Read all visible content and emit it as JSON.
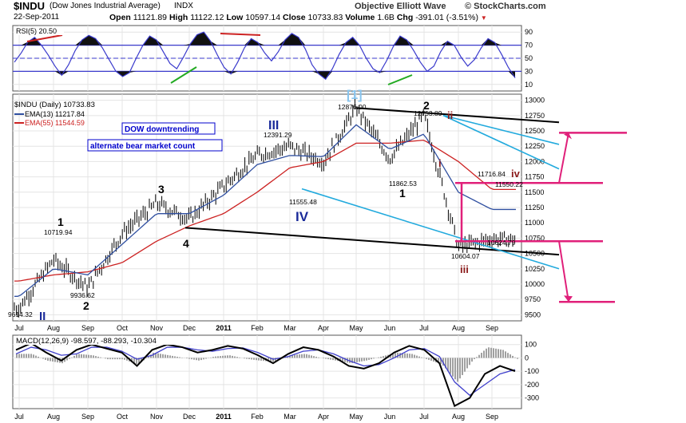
{
  "header": {
    "symbol": "$INDU",
    "name": "(Dow Jones Industrial Average)",
    "exchange": "INDX",
    "date": "22-Sep-2011",
    "open_label": "Open",
    "open": "11121.89",
    "high_label": "High",
    "high": "11122.12",
    "low_label": "Low",
    "low": "10597.14",
    "close_label": "Close",
    "close": "10733.83",
    "volume_label": "Volume",
    "volume": "1.6B",
    "chg_label": "Chg",
    "chg": "-391.01 (-3.51%)",
    "source": "Objective Elliott Wave",
    "copyright": "© StockCharts.com"
  },
  "colors": {
    "price": "#000000",
    "ema13": "#2f4fa0",
    "ema55": "#cc2222",
    "rsi": "#3a3acc",
    "macd": "#000000",
    "signal": "#4040cc",
    "histogram": "#a0a0a0",
    "channel_blue": "#22aadd",
    "trend_black": "#000000",
    "magenta": "#e0207a",
    "wave_red": "#8b1a1a",
    "wave_blue": "#1a2a9a",
    "label_box": "#0000cc",
    "arrow_down": "#cc2222"
  },
  "chart_data": [
    {
      "type": "line",
      "panel": "rsi",
      "title": "RSI(5) 20.50",
      "series": [
        {
          "name": "RSI(5)",
          "values": [
            44,
            58,
            75,
            82,
            70,
            55,
            38,
            24,
            40,
            62,
            78,
            85,
            80,
            66,
            48,
            30,
            22,
            28,
            50,
            70,
            84,
            78,
            60,
            42,
            34,
            52,
            72,
            86,
            90,
            76,
            55,
            36,
            26,
            44,
            66,
            80,
            74,
            58,
            46,
            60,
            78,
            88,
            82,
            64,
            40,
            26,
            18,
            34,
            56,
            74,
            82,
            70,
            50,
            34,
            28,
            46,
            68,
            84,
            78,
            62,
            44,
            30,
            38,
            60,
            76,
            70,
            52,
            38,
            48,
            66,
            80,
            74,
            56,
            36,
            20
          ]
        }
      ],
      "yticks": [
        10,
        30,
        50,
        70,
        90
      ],
      "ylim": [
        0,
        100
      ]
    },
    {
      "type": "line",
      "panel": "price",
      "title": "$INDU (Daily) 10733.83",
      "x_tick_labels": [
        "Jul",
        "Aug",
        "Sep",
        "Oct",
        "Nov",
        "Dec",
        "2011",
        "Feb",
        "Mar",
        "Apr",
        "May",
        "Jun",
        "Jul",
        "Aug",
        "Sep"
      ],
      "yticks": [
        9500,
        9750,
        10000,
        10250,
        10500,
        10750,
        11000,
        11250,
        11500,
        11750,
        12000,
        12250,
        12500,
        12750,
        13000
      ],
      "ylim": [
        9400,
        13100
      ],
      "series": [
        {
          "name": "$INDU (Daily)",
          "x": [
            "Jul",
            "Aug",
            "Sep",
            "Oct",
            "Nov",
            "Dec",
            "2011",
            "Feb",
            "Mar",
            "Apr",
            "May",
            "Jun",
            "Jul",
            "Aug",
            "Sep"
          ],
          "values": [
            9614,
            10400,
            9936,
            10830,
            11320,
            11060,
            11600,
            12100,
            12250,
            12000,
            12876,
            12050,
            12753,
            10604,
            10733
          ]
        },
        {
          "name": "EMA(13) 11217.84",
          "values": [
            9800,
            10250,
            10150,
            10650,
            11150,
            11150,
            11450,
            11950,
            12100,
            12080,
            12600,
            12200,
            12450,
            11500,
            11218
          ]
        },
        {
          "name": "EMA(55) 11544.59",
          "values": [
            10050,
            10150,
            10200,
            10350,
            10700,
            10950,
            11150,
            11500,
            11900,
            12000,
            12300,
            12300,
            12350,
            12000,
            11545
          ]
        }
      ],
      "annotations": [
        {
          "text": "10719.94"
        },
        {
          "text": "9614.32"
        },
        {
          "text": "9936.62"
        },
        {
          "text": "12391.29"
        },
        {
          "text": "11555.48"
        },
        {
          "text": "12876.00"
        },
        {
          "text": "12753.89"
        },
        {
          "text": "11862.53"
        },
        {
          "text": "11716.84"
        },
        {
          "text": "11550.22"
        },
        {
          "text": "10604.07"
        },
        {
          "text": "10624.79"
        }
      ],
      "wave_labels": [
        "1",
        "2",
        "3",
        "4",
        "II",
        "III",
        "IV",
        "[1]",
        "2",
        "1",
        "ii",
        "i",
        "iii",
        "iv"
      ],
      "text_boxes": [
        "DOW downtrending",
        "alternate bear market count"
      ]
    },
    {
      "type": "line",
      "panel": "macd",
      "title": "MACD(12,26,9) -98.597, -88.293, -10.304",
      "yticks": [
        -300,
        -200,
        -100,
        0,
        100
      ],
      "ylim": [
        -380,
        170
      ],
      "series": [
        {
          "name": "MACD",
          "values": [
            60,
            110,
            40,
            -20,
            60,
            100,
            70,
            40,
            -60,
            60,
            100,
            80,
            40,
            60,
            90,
            70,
            20,
            -40,
            30,
            80,
            60,
            10,
            -60,
            -80,
            -40,
            40,
            90,
            60,
            -40,
            -360,
            -300,
            -120,
            -60,
            -99
          ]
        },
        {
          "name": "Signal",
          "values": [
            30,
            80,
            60,
            20,
            30,
            80,
            80,
            50,
            -10,
            20,
            80,
            80,
            60,
            50,
            70,
            75,
            40,
            -10,
            10,
            50,
            60,
            30,
            -20,
            -60,
            -50,
            0,
            60,
            70,
            10,
            -180,
            -280,
            -200,
            -120,
            -88
          ]
        }
      ]
    }
  ],
  "rsi_labels": {
    "label": "RSI(5) 20.50"
  },
  "price_labels": {
    "title": "$INDU (Daily) 10733.83",
    "ema13": "EMA(13) 11217.84",
    "ema55": "EMA(55) 11544.59"
  },
  "macd_labels": {
    "label": "MACD(12,26,9) -98.597, -88.293, -10.304"
  }
}
